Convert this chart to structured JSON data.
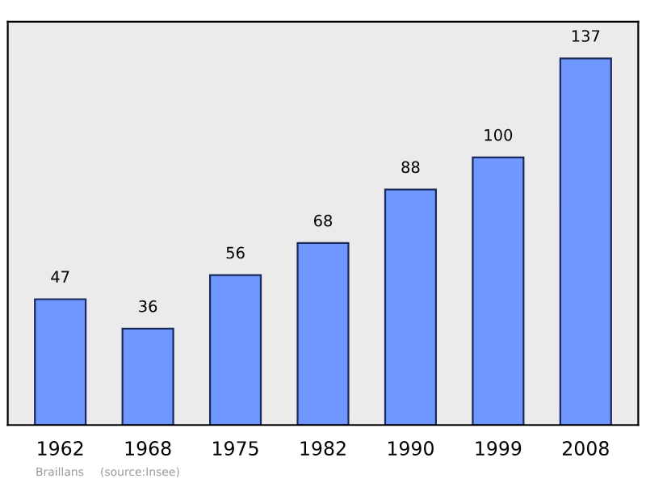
{
  "chart_data": {
    "type": "bar",
    "categories": [
      "1962",
      "1968",
      "1975",
      "1982",
      "1990",
      "1999",
      "2008"
    ],
    "values": [
      47,
      36,
      56,
      68,
      88,
      100,
      137
    ],
    "color": "#7097ff",
    "data_labels": true,
    "grid": false,
    "tick_labels": "x",
    "annotations": [
      "Braillans",
      "(source:Insee)"
    ]
  }
}
